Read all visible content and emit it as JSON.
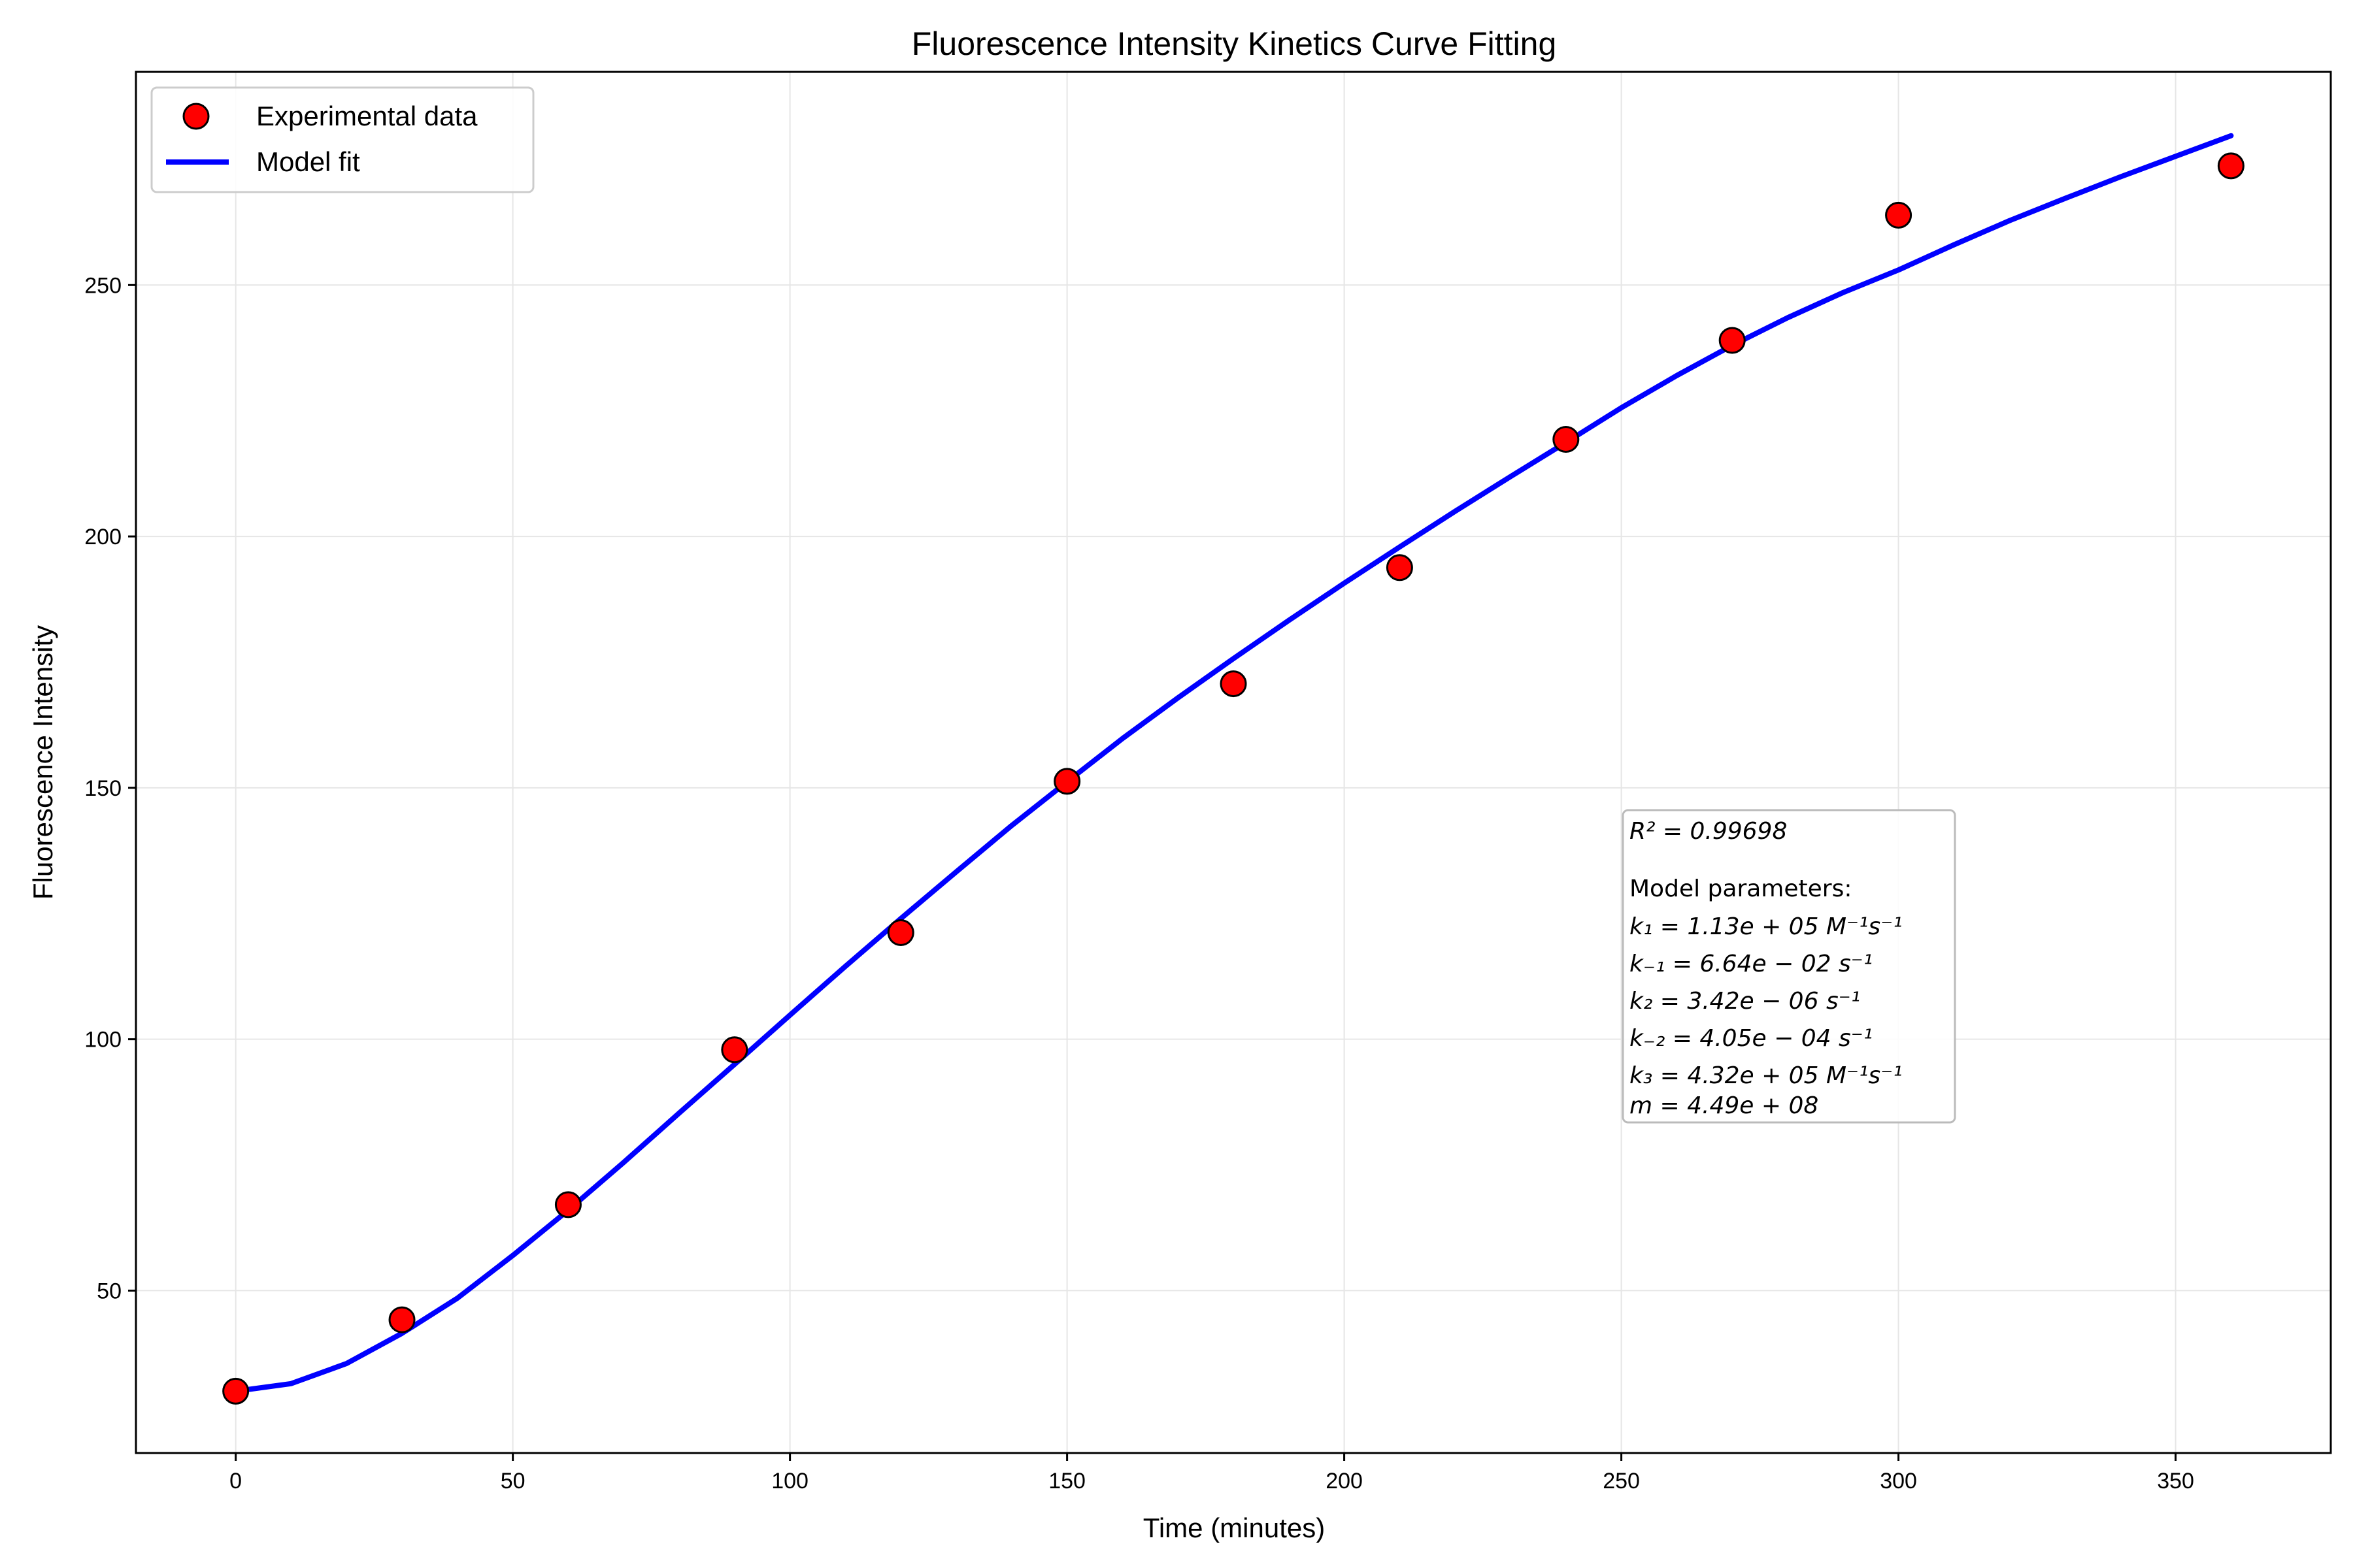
{
  "chart_data": {
    "type": "scatter",
    "title": "Fluorescence Intensity Kinetics Curve Fitting",
    "xlabel": "Time (minutes)",
    "ylabel": "Fluorescence Intensity",
    "xlim": [
      -18,
      378
    ],
    "ylim": [
      17.7,
      292.4
    ],
    "xticks": [
      0,
      50,
      100,
      150,
      200,
      250,
      300,
      350
    ],
    "yticks": [
      50,
      100,
      150,
      200,
      250
    ],
    "grid": true,
    "legend_position": "top-left",
    "series": [
      {
        "name": "Experimental data",
        "kind": "scatter",
        "color": "#ff0000",
        "edge_color": "#000000",
        "x": [
          0,
          30,
          60,
          90,
          120,
          150,
          180,
          210,
          240,
          270,
          300,
          360
        ],
        "y": [
          30.0,
          44.2,
          67.1,
          97.9,
          121.2,
          151.3,
          170.7,
          193.8,
          219.3,
          239.0,
          263.9,
          273.7
        ]
      },
      {
        "name": "Model fit",
        "kind": "line",
        "color": "#0000ff",
        "x": [
          0,
          10,
          20,
          30,
          40,
          50,
          60,
          70,
          80,
          90,
          100,
          110,
          120,
          130,
          140,
          150,
          160,
          170,
          180,
          190,
          200,
          210,
          220,
          230,
          240,
          250,
          260,
          270,
          280,
          290,
          300,
          310,
          320,
          330,
          340,
          350,
          360
        ],
        "y": [
          30.0,
          31.5,
          35.5,
          41.5,
          48.5,
          57.0,
          66.0,
          75.5,
          85.3,
          95.0,
          104.8,
          114.5,
          124.0,
          133.3,
          142.5,
          151.2,
          159.8,
          167.9,
          175.7,
          183.3,
          190.7,
          197.9,
          205.0,
          211.9,
          218.7,
          225.6,
          232.0,
          238.0,
          243.5,
          248.5,
          253.0,
          258.0,
          262.8,
          267.2,
          271.5,
          275.6,
          279.7
        ]
      }
    ],
    "annotation": {
      "r2": "R² = 0.99698",
      "params_heading": "Model parameters:",
      "params": [
        "k₁ = 1.13e + 05 M⁻¹s⁻¹",
        "k₋₁ = 6.64e − 02 s⁻¹",
        "k₂ = 3.42e − 06 s⁻¹",
        "k₋₂ = 4.05e − 04 s⁻¹",
        "k₃ = 4.32e + 05 M⁻¹s⁻¹",
        "m = 4.49e + 08"
      ]
    }
  }
}
